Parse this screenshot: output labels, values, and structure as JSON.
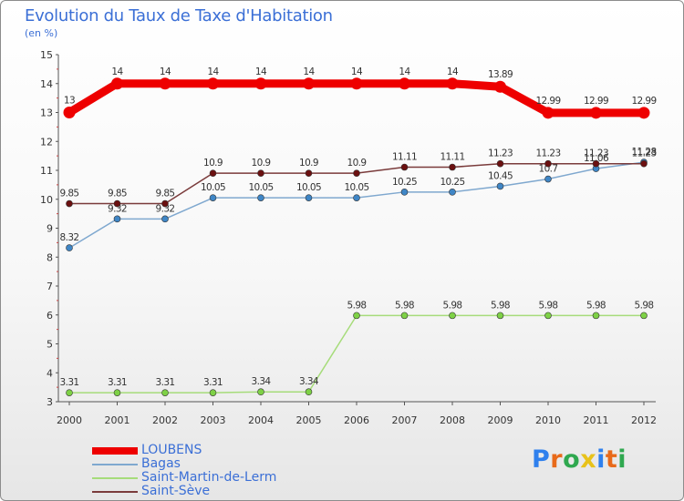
{
  "title": "Evolution du Taux de Taxe d'Habitation",
  "subtitle": "(en %)",
  "logo": {
    "text": "Proxiti",
    "letter_colors": [
      "#2f80ed",
      "#e86a1a",
      "#2fa84f",
      "#e8c21a",
      "#2f80ed",
      "#e86a1a",
      "#2fa84f"
    ]
  },
  "chart_data": {
    "type": "line",
    "x": [
      "2000",
      "2001",
      "2002",
      "2003",
      "2004",
      "2005",
      "2006",
      "2007",
      "2008",
      "2009",
      "2010",
      "2011",
      "2012"
    ],
    "y_ticks": [
      3,
      4,
      5,
      6,
      7,
      8,
      9,
      10,
      11,
      12,
      13,
      14,
      15
    ],
    "ylim": [
      3,
      15
    ],
    "grid": false,
    "legend_position": "bottom-left",
    "series": [
      {
        "name": "LOUBENS",
        "color": "#ee0000",
        "marker_color": "#ee0000",
        "emphasis": true,
        "values": [
          13,
          14,
          14,
          14,
          14,
          14,
          14,
          14,
          14,
          13.89,
          12.99,
          12.99,
          12.99
        ],
        "labels": [
          "13",
          "14",
          "14",
          "14",
          "14",
          "14",
          "14",
          "14",
          "14",
          "13.89",
          "12.99",
          "12.99",
          "12.99"
        ]
      },
      {
        "name": "Bagas",
        "color": "#7fa8cf",
        "marker_color": "#3f86c6",
        "values": [
          8.32,
          9.32,
          9.32,
          10.05,
          10.05,
          10.05,
          10.05,
          10.25,
          10.25,
          10.45,
          10.7,
          11.06,
          11.28
        ],
        "labels": [
          "8.32",
          "9.32",
          "9.32",
          "10.05",
          "10.05",
          "10.05",
          "10.05",
          "10.25",
          "10.25",
          "10.45",
          "10.7",
          "11.06",
          "11.28"
        ]
      },
      {
        "name": "Saint-Martin-de-Lerm",
        "color": "#a6dc7a",
        "marker_color": "#7ed146",
        "values": [
          3.31,
          3.31,
          3.31,
          3.31,
          3.34,
          3.34,
          5.98,
          5.98,
          5.98,
          5.98,
          5.98,
          5.98,
          5.98
        ],
        "labels": [
          "3.31",
          "3.31",
          "3.31",
          "3.31",
          "3.34",
          "3.34",
          "5.98",
          "5.98",
          "5.98",
          "5.98",
          "5.98",
          "5.98",
          "5.98"
        ]
      },
      {
        "name": "Saint-Sève",
        "color": "#7a3b3b",
        "marker_color": "#6b1010",
        "values": [
          9.85,
          9.85,
          9.85,
          10.9,
          10.9,
          10.9,
          10.9,
          11.11,
          11.11,
          11.23,
          11.23,
          11.23,
          11.23
        ],
        "labels": [
          "9.85",
          "9.85",
          "9.85",
          "10.9",
          "10.9",
          "10.9",
          "10.9",
          "11.11",
          "11.11",
          "11.23",
          "11.23",
          "11.23",
          "11.23"
        ]
      }
    ]
  }
}
